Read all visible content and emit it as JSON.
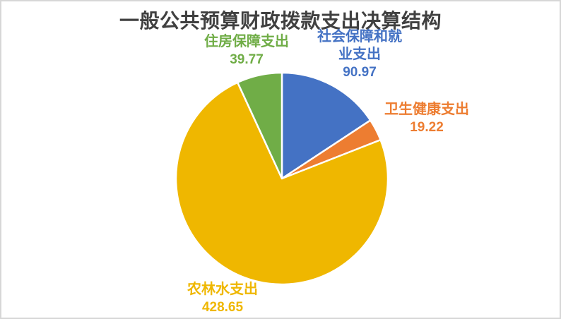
{
  "window": {
    "background": "#ffffff",
    "border_color": "#d7d7d7"
  },
  "chart_data": {
    "type": "pie",
    "title": "一般公共预算财政拨款支出决算结构",
    "title_color": "#404040",
    "legend_position": "none",
    "start_angle_deg": 0,
    "direction": "clockwise",
    "slice_border_color": "#ffffff",
    "slices": [
      {
        "key": "social-security-employment",
        "name": "社会保障和就业支出",
        "label_lines": [
          "社会保障和就",
          "业支出"
        ],
        "value": 90.97,
        "color": "#4472c4"
      },
      {
        "key": "health",
        "name": "卫生健康支出",
        "label_lines": [
          "卫生健康支出"
        ],
        "value": 19.22,
        "color": "#ed7d31"
      },
      {
        "key": "agriculture-forestry-water",
        "name": "农林水支出",
        "label_lines": [
          "农林水支出"
        ],
        "value": 428.65,
        "color": "#efb700"
      },
      {
        "key": "housing-security",
        "name": "住房保障支出",
        "label_lines": [
          "住房保障支出"
        ],
        "value": 39.77,
        "color": "#70ad47"
      }
    ]
  }
}
